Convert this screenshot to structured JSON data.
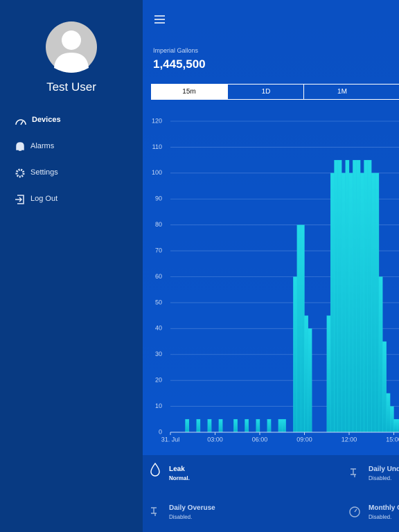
{
  "sidebar": {
    "user_name": "Test User",
    "menu": [
      "Devices",
      "Alarms",
      "Settings",
      "Log Out"
    ]
  },
  "header": {
    "unit_label": "Imperial Gallons",
    "total": "1,445,500"
  },
  "tabs": [
    "15m",
    "1D",
    "1M"
  ],
  "chart_data": {
    "type": "bar",
    "x": [
      1.0,
      1.75,
      2.5,
      3.25,
      4.25,
      5.0,
      5.75,
      6.5,
      7.25,
      7.5,
      8.25,
      8.5,
      8.75,
      9.0,
      9.25,
      10.5,
      10.75,
      11.0,
      11.25,
      11.5,
      11.75,
      12.0,
      12.25,
      12.5,
      12.75,
      13.0,
      13.25,
      13.5,
      13.75,
      14.0,
      14.25,
      14.5,
      14.75,
      15.0,
      15.25
    ],
    "values": [
      5,
      5,
      5,
      5,
      5,
      5,
      5,
      5,
      5,
      5,
      60,
      80,
      80,
      45,
      40,
      45,
      100,
      105,
      105,
      100,
      105,
      100,
      105,
      105,
      100,
      105,
      105,
      100,
      100,
      60,
      35,
      15,
      10,
      5,
      5
    ],
    "color": "#1fd6e4",
    "xlim": [
      0,
      16
    ],
    "xticks": [
      {
        "value": 0,
        "label": "31. Jul"
      },
      {
        "value": 3,
        "label": "03:00"
      },
      {
        "value": 6,
        "label": "06:00"
      },
      {
        "value": 9,
        "label": "09:00"
      },
      {
        "value": 12,
        "label": "12:00"
      },
      {
        "value": 15,
        "label": "15:00"
      }
    ],
    "ylim": [
      0,
      120
    ],
    "yticks": [
      0,
      10,
      20,
      30,
      40,
      50,
      60,
      70,
      80,
      90,
      100,
      110,
      120
    ],
    "grid": true
  },
  "status": [
    {
      "title": "Leak",
      "state": "Normal."
    },
    {
      "title": "Daily Underuse",
      "state": "Disabled."
    },
    {
      "title": "Daily Overuse",
      "state": "Disabled."
    },
    {
      "title": "Monthly Overuse",
      "state": "Disabled."
    }
  ]
}
